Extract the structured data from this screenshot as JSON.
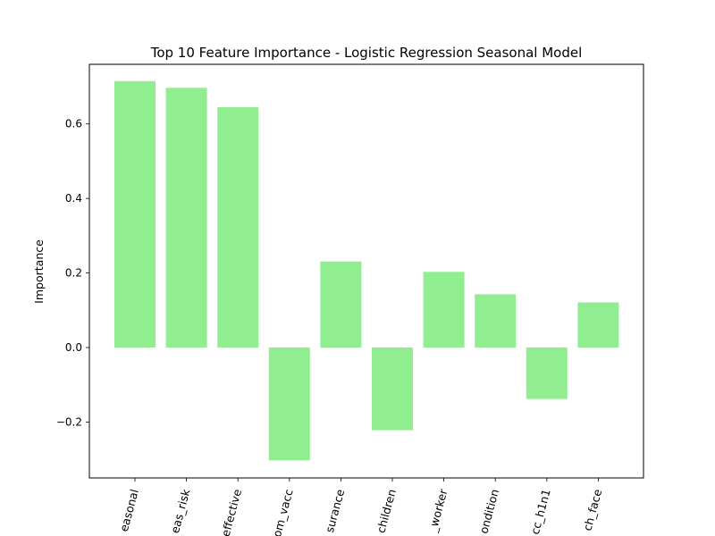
{
  "chart_data": {
    "type": "bar",
    "title": "Top 10 Feature Importance - Logistic Regression Seasonal Model",
    "xlabel": "",
    "ylabel": "Importance",
    "categories": [
      "easonal",
      "eas_risk",
      "effective",
      "om_vacc",
      "surance",
      "children",
      "_worker",
      "ondition",
      "cc_h1n1",
      "ch_face"
    ],
    "values": [
      0.715,
      0.697,
      0.645,
      -0.303,
      0.231,
      -0.222,
      0.203,
      0.143,
      -0.138,
      0.121
    ],
    "ylim": [
      -0.35,
      0.76
    ],
    "yticks": [
      -0.2,
      0.0,
      0.2,
      0.4,
      0.6
    ],
    "ytick_labels": [
      "−0.2",
      "0.0",
      "0.2",
      "0.4",
      "0.6"
    ],
    "bar_color": "#90ee90",
    "grid": false,
    "legend": "none"
  }
}
